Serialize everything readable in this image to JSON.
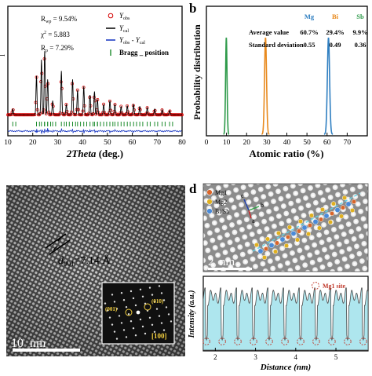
{
  "panel_a": {
    "stats": {
      "rwp": "R",
      "rwp_sub": "wp",
      "rwp_val": " = 9.54%",
      "chi": "χ",
      "chi_sup": "2",
      "chi_val": " = 5.883",
      "rp": "R",
      "rp_sub": "p",
      "rp_val": " = 7.29%"
    },
    "legend": [
      {
        "label": "Y",
        "sub": "obs",
        "color": "#d40000",
        "kind": "circle"
      },
      {
        "label": "Y",
        "sub": "cal",
        "color": "#000000",
        "kind": "line"
      },
      {
        "label": "Y",
        "sub": "obs",
        "label2": " - Y",
        "sub2": "cal",
        "color": "#1030c0",
        "kind": "line"
      },
      {
        "label": "Bragg _ position",
        "color": "#1a8a2a",
        "kind": "tick"
      }
    ],
    "xlabel_italic": "2Theta",
    "xlabel_rest": " (deg.)",
    "ylabel_hint": "I",
    "x_ticks": [
      "10",
      "20",
      "30",
      "40",
      "50",
      "60",
      "70",
      "80"
    ]
  },
  "panel_b": {
    "letter": "b",
    "headers": [
      "Mg",
      "Bi",
      "Sb"
    ],
    "header_colors": [
      "#2f7fc1",
      "#e8891c",
      "#2e9a4a"
    ],
    "row1_label": "Average value",
    "row1_values": [
      "60.7%",
      "29.4%",
      "9.9%"
    ],
    "row2_label": "Standard deviation",
    "row2_values": [
      "0.55",
      "0.49",
      "0.36"
    ],
    "ylabel": "Probability distribution",
    "xlabel": "Atomic ratio (%)",
    "x_ticks": [
      "0",
      "10",
      "20",
      "30",
      "40",
      "50",
      "60",
      "70"
    ]
  },
  "panel_c": {
    "d_label": "d",
    "d_sub": "001",
    "d_value": "=7.14 Å",
    "scale": "10  nm",
    "fft_labels": [
      "(001)",
      "(010)",
      "[100]"
    ]
  },
  "panel_d": {
    "letter": "d",
    "atom_legend": [
      "Mg1",
      "Mg2",
      "Bi/Sb"
    ],
    "atom_colors": [
      "#d9652a",
      "#e0b020",
      "#4a8ad8"
    ],
    "axes": [
      "c",
      "a",
      "b"
    ],
    "scale": "2  nm",
    "site_label": "Mg1 site",
    "ylabel": "Intensity (a.u.)",
    "xlabel": "Distance (nm)",
    "x_ticks": [
      "2",
      "3",
      "4",
      "5"
    ]
  },
  "chart_data": [
    {
      "type": "line",
      "panel": "b",
      "xlabel": "Atomic ratio (%)",
      "ylabel": "Probability distribution",
      "xlim": [
        0,
        80
      ],
      "series": [
        {
          "name": "Mg",
          "mean": 60.7,
          "std": 0.55,
          "color": "#2f7fc1"
        },
        {
          "name": "Bi",
          "mean": 29.4,
          "std": 0.49,
          "color": "#e8891c"
        },
        {
          "name": "Sb",
          "mean": 9.9,
          "std": 0.36,
          "color": "#2e9a4a"
        }
      ]
    },
    {
      "type": "line",
      "panel": "a",
      "xlim": [
        10,
        80
      ],
      "peaks": [
        [
          12,
          0.08
        ],
        [
          21.5,
          0.55
        ],
        [
          23.5,
          0.78
        ],
        [
          24.8,
          0.9
        ],
        [
          26,
          0.5
        ],
        [
          28,
          0.2
        ],
        [
          31.5,
          0.62
        ],
        [
          33.5,
          0.15
        ],
        [
          36,
          0.5
        ],
        [
          38,
          0.35
        ],
        [
          40.5,
          0.4
        ],
        [
          43,
          0.28
        ],
        [
          44.8,
          0.33
        ],
        [
          46,
          0.22
        ],
        [
          48.5,
          0.15
        ],
        [
          51,
          0.2
        ],
        [
          53,
          0.15
        ],
        [
          55.5,
          0.12
        ],
        [
          58,
          0.13
        ],
        [
          60.5,
          0.15
        ],
        [
          63,
          0.12
        ],
        [
          66,
          0.1
        ],
        [
          69,
          0.08
        ],
        [
          72,
          0.07
        ],
        [
          75,
          0.06
        ]
      ]
    }
  ]
}
